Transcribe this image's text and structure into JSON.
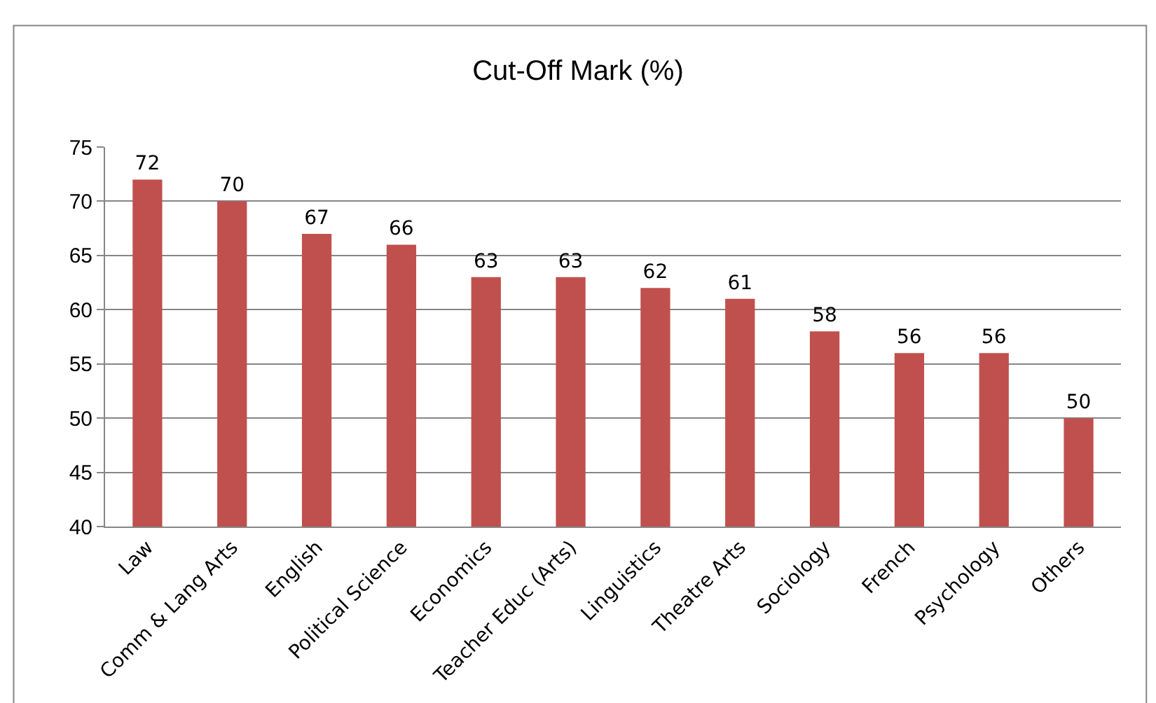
{
  "chart_data": {
    "type": "bar",
    "title": "Cut-Off Mark (%)",
    "categories": [
      "Law",
      "Comm & Lang Arts",
      "English",
      "Political Science",
      "Economics",
      "Teacher Educ (Arts)",
      "Linguistics",
      "Theatre Arts",
      "Sociology",
      "French",
      "Psychology",
      "Others"
    ],
    "values": [
      72,
      70,
      67,
      66,
      63,
      63,
      62,
      61,
      58,
      56,
      56,
      50
    ],
    "color": "#c0504d",
    "ylim": [
      40,
      75
    ],
    "yticks": [
      40,
      45,
      50,
      55,
      60,
      65,
      70,
      75
    ],
    "grid": "y",
    "data_labels": true
  }
}
